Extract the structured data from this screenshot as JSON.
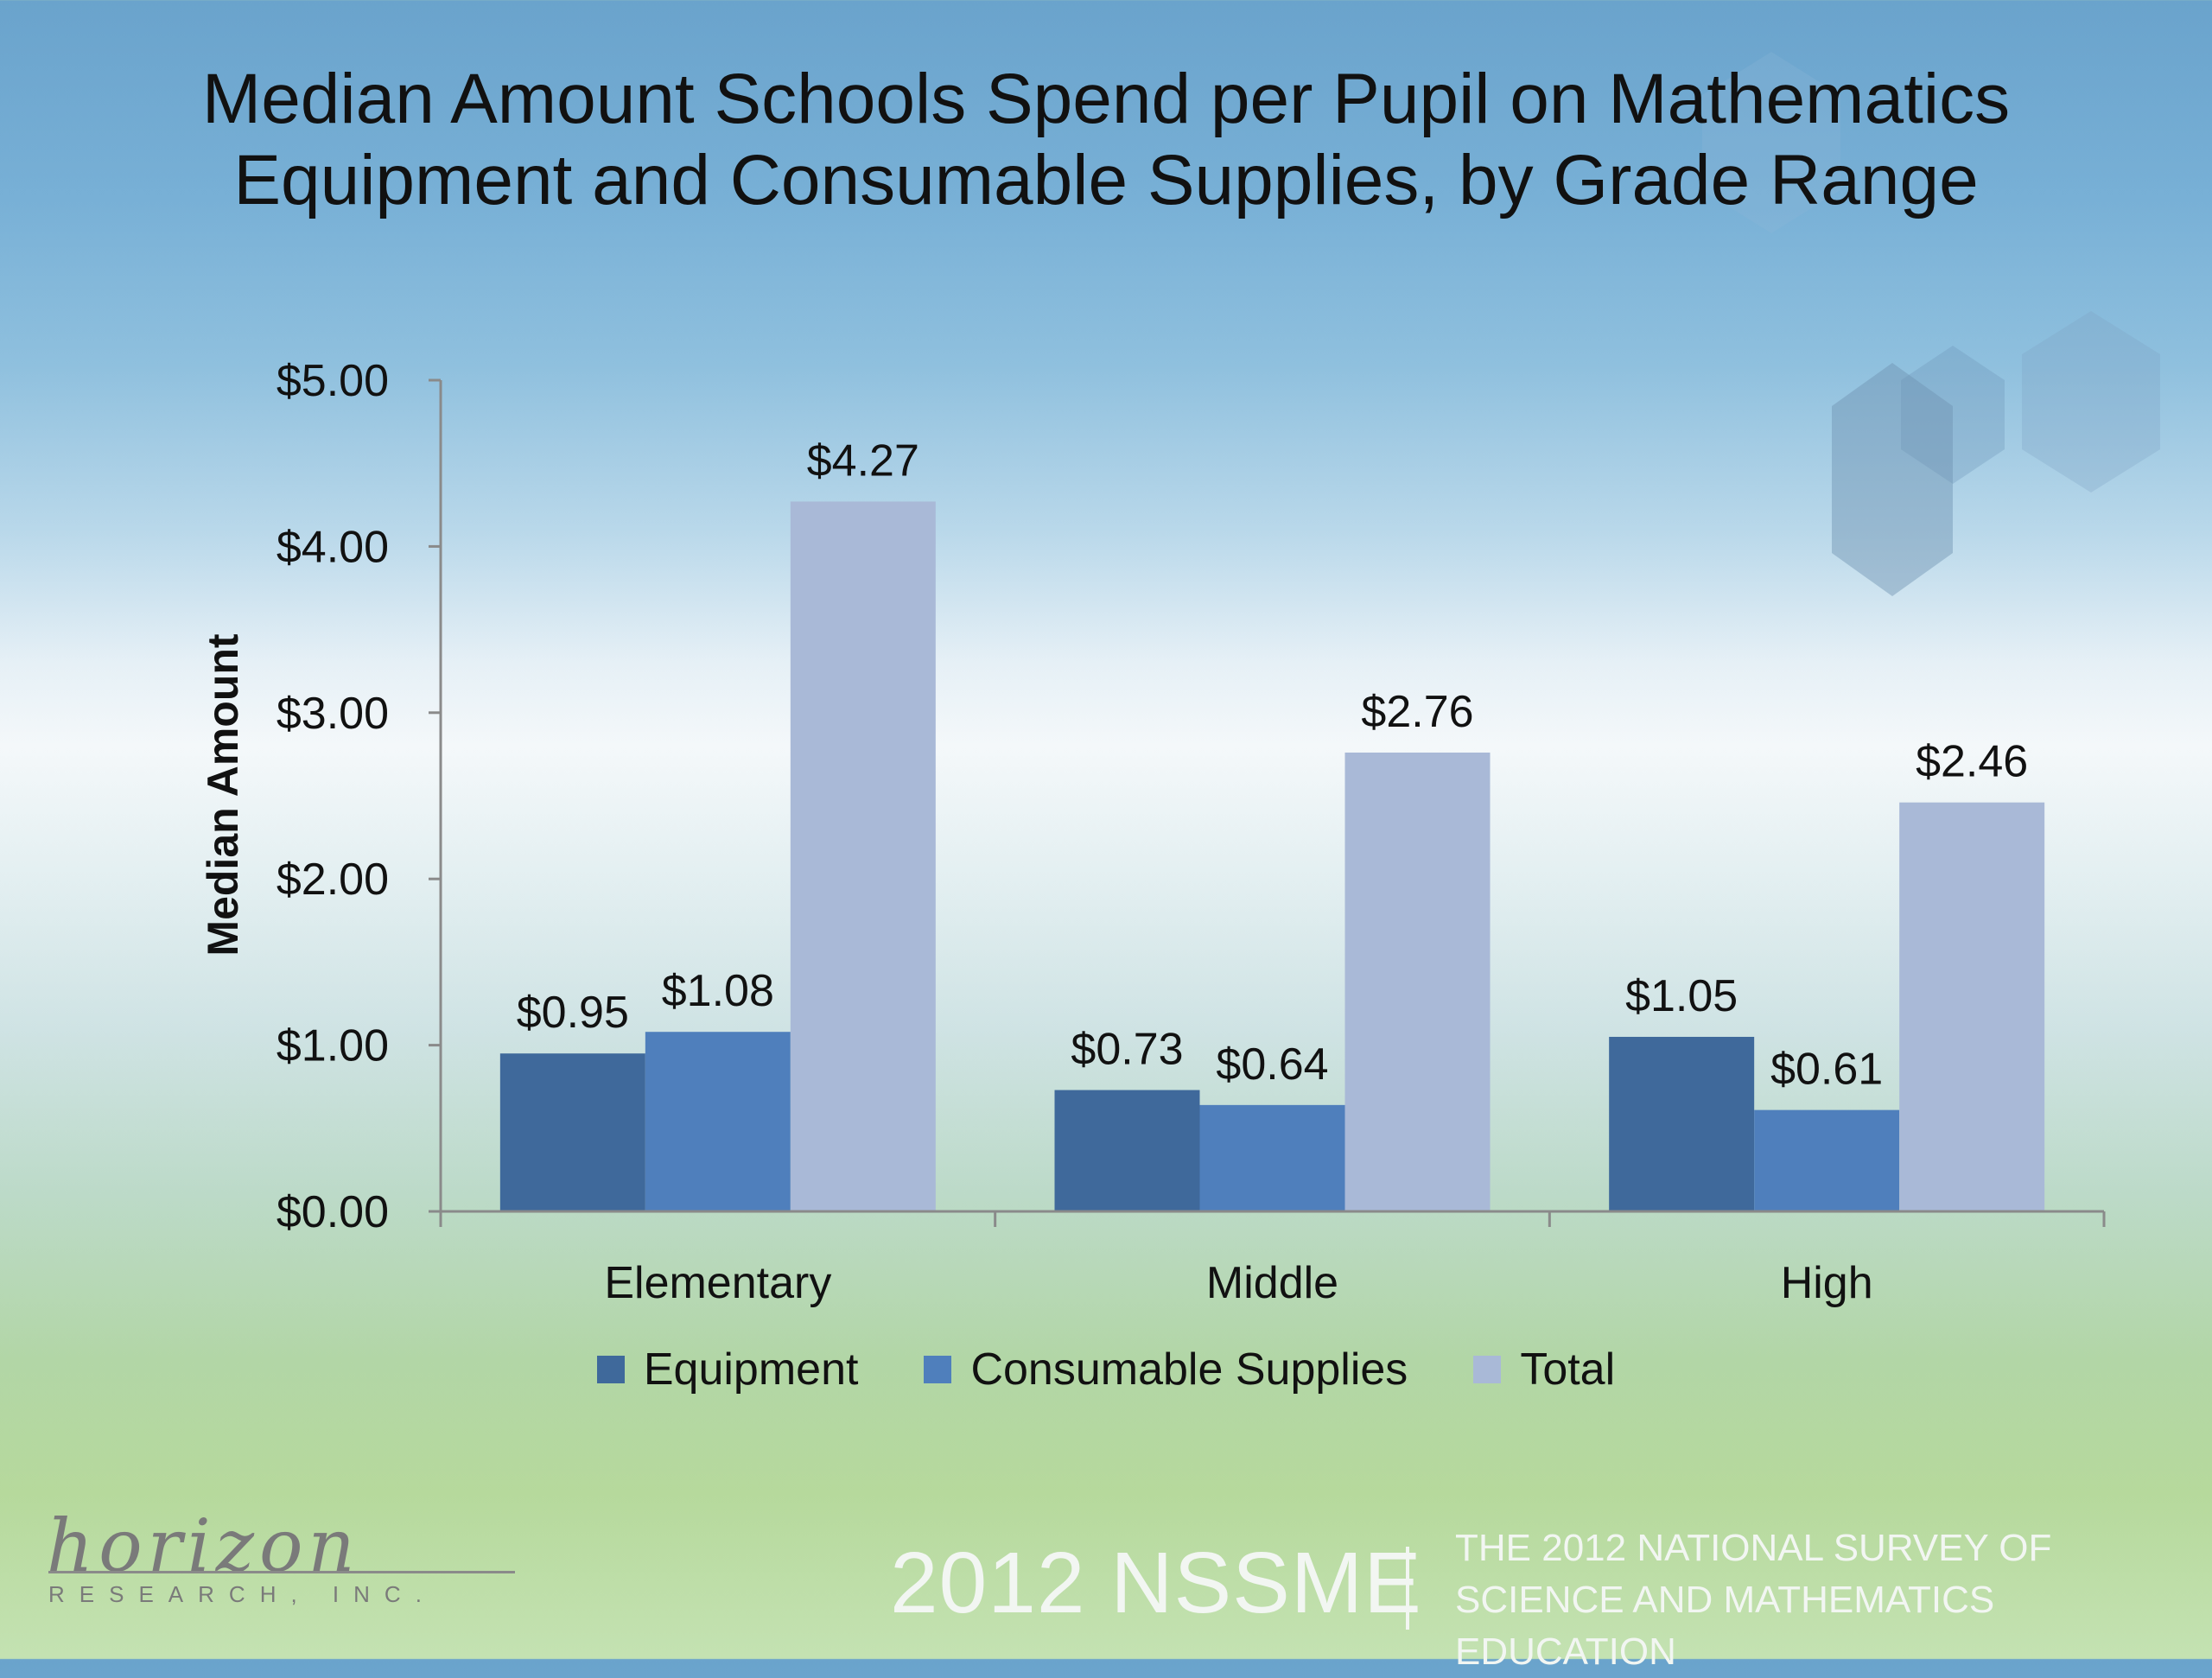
{
  "chart_data": {
    "type": "bar",
    "title": "Median Amount Schools Spend per Pupil on Mathematics Equipment and Consumable Supplies, by Grade Range",
    "categories": [
      "Elementary",
      "Middle",
      "High"
    ],
    "series": [
      {
        "name": "Equipment",
        "values": [
          0.95,
          0.73,
          1.05
        ],
        "labels": [
          "$0.95",
          "$0.73",
          "$1.05"
        ],
        "color": "#3f699b"
      },
      {
        "name": "Consumable Supplies",
        "values": [
          1.08,
          0.64,
          0.61
        ],
        "labels": [
          "$1.08",
          "$0.64",
          "$0.61"
        ],
        "color": "#4f7fbc"
      },
      {
        "name": "Total",
        "values": [
          4.27,
          2.76,
          2.46
        ],
        "labels": [
          "$4.27",
          "$2.76",
          "$2.46"
        ],
        "color": "#a9b9d7"
      }
    ],
    "xlabel": "",
    "ylabel": "Median Amount",
    "ylim": [
      0,
      5
    ],
    "yticks": [
      "$0.00",
      "$1.00",
      "$2.00",
      "$3.00",
      "$4.00",
      "$5.00"
    ],
    "grid": false,
    "legend": "bottom"
  },
  "footer": {
    "logo_word": "horizon",
    "logo_sub": "RESEARCH, INC.",
    "brand": "2012 NSSME",
    "survey_line1": "THE 2012 NATIONAL SURVEY OF",
    "survey_line2": "SCIENCE AND MATHEMATICS EDUCATION"
  }
}
